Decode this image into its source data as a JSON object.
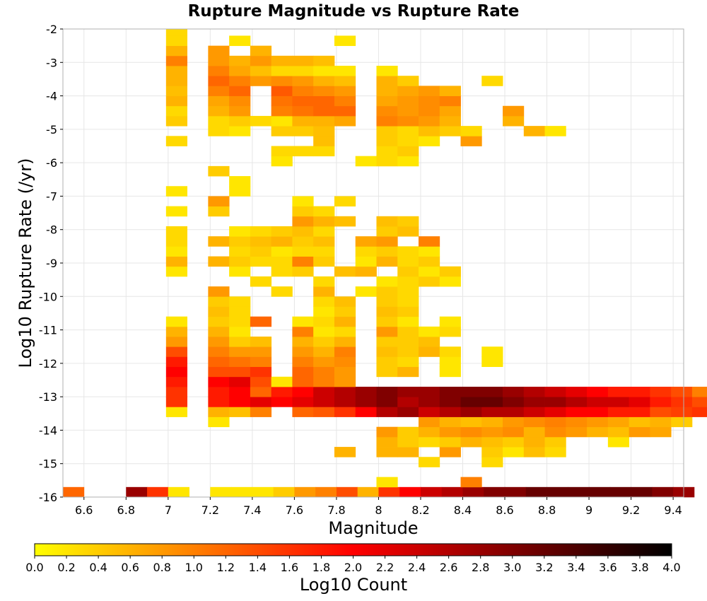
{
  "chart_data": {
    "type": "heatmap",
    "title": "Rupture Magnitude vs Rupture Rate",
    "xlabel": "Magnitude",
    "ylabel": "Log10 Rupture Rate (/yr)",
    "xlim": [
      6.5,
      9.45
    ],
    "ylim": [
      -16,
      -2
    ],
    "grid": true,
    "x_ticks": [
      6.6,
      6.8,
      7,
      7.2,
      7.4,
      7.6,
      7.8,
      8,
      8.2,
      8.4,
      8.6,
      8.8,
      9,
      9.2,
      9.4
    ],
    "x_tick_labels": [
      "6.6",
      "6.8",
      "7",
      "7.2",
      "7.4",
      "7.6",
      "7.8",
      "8",
      "8.2",
      "8.4",
      "8.6",
      "8.8",
      "9",
      "9.2",
      "9.4"
    ],
    "y_ticks": [
      -2,
      -3,
      -4,
      -5,
      -6,
      -7,
      -8,
      -9,
      -10,
      -11,
      -12,
      -13,
      -14,
      -15,
      -16
    ],
    "y_tick_labels": [
      "-2",
      "-3",
      "-4",
      "-5",
      "-6",
      "-7",
      "-8",
      "-9",
      "-10",
      "-11",
      "-12",
      "-13",
      "-14",
      "-15",
      "-16"
    ],
    "bin_width_x": 0.1,
    "bin_height_y": 0.3,
    "colorbar": {
      "label": "Log10 Count",
      "range": [
        0.0,
        4.0
      ],
      "tick_labels": [
        "0.0",
        "0.2",
        "0.4",
        "0.6",
        "0.8",
        "1.0",
        "1.2",
        "1.4",
        "1.6",
        "1.8",
        "2.0",
        "2.2",
        "2.4",
        "2.6",
        "2.8",
        "3.0",
        "3.2",
        "3.4",
        "3.6",
        "3.8",
        "4.0"
      ],
      "colors": [
        "#ffff00",
        "#ff0000",
        "#000000"
      ]
    },
    "rows": [
      {
        "y": -16.0,
        "x_start": 6.5,
        "values": [
          1.2,
          null,
          null,
          2.8,
          1.6,
          0.2,
          null,
          0.2,
          0.2,
          0.2,
          0.4,
          0.8,
          1.0,
          1.4,
          0.6,
          1.6,
          2.0,
          2.4,
          2.6,
          2.8,
          3.0,
          3.0,
          3.2,
          3.2,
          3.2,
          3.2,
          3.2,
          3.2,
          3.0,
          2.8
        ]
      },
      {
        "y": -15.7,
        "x_start": 7.99,
        "values": [
          0.2,
          null,
          null,
          null,
          1.0
        ]
      },
      {
        "y": -15.1,
        "x_start": 8.19,
        "values": [
          0.3,
          null,
          null,
          0.3
        ]
      },
      {
        "y": -14.8,
        "x_start": 7.79,
        "values": [
          0.6,
          null,
          0.6,
          0.6,
          null,
          0.8,
          null,
          0.4,
          0.2,
          0.5,
          0.3
        ]
      },
      {
        "y": -14.5,
        "x_start": 7.99,
        "values": [
          0.6,
          0.4,
          0.3,
          0.4,
          0.6,
          0.5,
          0.4,
          0.6,
          0.4,
          null,
          null,
          0.2
        ]
      },
      {
        "y": -14.2,
        "x_start": 7.99,
        "values": [
          0.8,
          0.4,
          0.6,
          0.8,
          0.9,
          0.8,
          0.9,
          0.6,
          0.9,
          0.8,
          0.6,
          0.5,
          0.8,
          0.7
        ]
      },
      {
        "y": -13.9,
        "x_start": 7.19,
        "values": [
          0.2,
          null,
          null,
          null,
          null,
          null,
          null,
          null,
          null,
          null,
          0.8,
          0.6,
          0.5,
          0.6,
          0.8,
          0.9,
          1.0,
          0.9,
          0.8,
          0.7,
          0.5,
          0.6,
          0.4
        ]
      },
      {
        "y": -13.6,
        "x_start": 6.99,
        "values": [
          0.2,
          null,
          0.6,
          0.5,
          1.0,
          null,
          1.2,
          1.3,
          1.6,
          2.0,
          2.6,
          2.8,
          2.4,
          2.6,
          2.8,
          2.6,
          2.6,
          2.4,
          2.2,
          2.0,
          2.0,
          1.8,
          1.8,
          1.4,
          1.5,
          1.6,
          1.2,
          1.0,
          1.2,
          1.6
        ]
      },
      {
        "y": -13.3,
        "x_start": 6.99,
        "values": [
          1.6,
          null,
          1.8,
          2.0,
          2.2,
          2.0,
          2.2,
          2.4,
          2.6,
          2.8,
          3.0,
          2.6,
          2.8,
          3.0,
          3.2,
          3.2,
          3.0,
          2.8,
          2.8,
          2.6,
          2.4,
          2.4,
          2.2,
          1.8,
          1.6,
          1.4,
          1.2,
          1.0,
          0.8,
          0.6
        ]
      },
      {
        "y": -13.0,
        "x_start": 6.99,
        "values": [
          1.6,
          null,
          1.8,
          2.0,
          1.2,
          1.8,
          2.0,
          2.4,
          2.6,
          2.8,
          3.0,
          2.8,
          2.8,
          3.0,
          3.0,
          3.0,
          2.8,
          2.6,
          2.4,
          2.2,
          2.0,
          1.8,
          1.8,
          1.6,
          1.4,
          1.0,
          0.6,
          0.4,
          0.4
        ]
      },
      {
        "y": -12.7,
        "x_start": 6.99,
        "values": [
          1.8,
          null,
          2.0,
          2.2,
          1.4,
          0.2,
          1.2,
          1.0,
          0.8
        ]
      },
      {
        "y": -12.4,
        "x_start": 6.99,
        "values": [
          2.0,
          null,
          1.4,
          1.4,
          1.6,
          null,
          1.2,
          1.0,
          0.8,
          null,
          0.4,
          0.6,
          null,
          0.2
        ]
      },
      {
        "y": -12.1,
        "x_start": 6.99,
        "values": [
          1.8,
          null,
          1.2,
          1.1,
          1.0,
          null,
          1.0,
          0.8,
          0.9,
          null,
          0.4,
          0.3,
          null,
          0.2,
          null,
          0.2
        ]
      },
      {
        "y": -11.8,
        "x_start": 6.99,
        "values": [
          1.4,
          null,
          1.0,
          0.8,
          0.8,
          null,
          0.8,
          0.6,
          1.0,
          null,
          0.5,
          0.4,
          0.6,
          0.3,
          null,
          0.2
        ]
      },
      {
        "y": -11.5,
        "x_start": 6.99,
        "values": [
          0.8,
          null,
          0.8,
          0.4,
          0.5,
          null,
          0.6,
          0.4,
          0.6,
          null,
          0.4,
          0.4,
          0.5
        ]
      },
      {
        "y": -11.2,
        "x_start": 6.99,
        "values": [
          0.6,
          null,
          0.6,
          0.2,
          null,
          null,
          1.0,
          0.2,
          0.3,
          null,
          0.8,
          0.4,
          0.2,
          0.3
        ]
      },
      {
        "y": -10.9,
        "x_start": 6.99,
        "values": [
          0.2,
          null,
          0.4,
          0.3,
          1.2,
          null,
          0.2,
          0.3,
          0.6,
          null,
          0.4,
          0.2,
          null,
          0.2
        ]
      },
      {
        "y": -10.6,
        "x_start": 7.19,
        "values": [
          0.5,
          0.3,
          null,
          null,
          null,
          0.2,
          0.4,
          null,
          0.5,
          0.4
        ]
      },
      {
        "y": -10.3,
        "x_start": 7.19,
        "values": [
          0.4,
          0.3,
          null,
          null,
          null,
          0.3,
          0.5,
          null,
          0.4,
          0.3
        ]
      },
      {
        "y": -10.0,
        "x_start": 7.19,
        "values": [
          0.8,
          null,
          null,
          0.3,
          null,
          0.6,
          null,
          0.2,
          0.4,
          0.3
        ]
      },
      {
        "y": -9.7,
        "x_start": 7.39,
        "values": [
          0.3,
          null,
          null,
          0.3,
          null,
          null,
          0.2,
          0.3,
          0.4,
          0.2
        ]
      },
      {
        "y": -9.4,
        "x_start": 6.99,
        "values": [
          0.2,
          null,
          null,
          0.2,
          null,
          0.3,
          0.4,
          null,
          0.5,
          0.6,
          null,
          0.4,
          0.2,
          0.4
        ]
      },
      {
        "y": -9.1,
        "x_start": 6.99,
        "values": [
          0.6,
          null,
          0.6,
          0.4,
          0.3,
          0.3,
          1.0,
          0.4,
          null,
          0.2,
          0.6,
          0.3,
          0.4
        ]
      },
      {
        "y": -8.8,
        "x_start": 6.99,
        "values": [
          0.2,
          null,
          null,
          0.3,
          0.4,
          0.2,
          0.3,
          0.3,
          null,
          0.3,
          0.4,
          0.3,
          0.2
        ]
      },
      {
        "y": -8.5,
        "x_start": 6.99,
        "values": [
          0.3,
          null,
          0.6,
          0.4,
          0.5,
          0.6,
          0.4,
          0.5,
          null,
          0.7,
          0.8,
          null,
          1.0
        ]
      },
      {
        "y": -8.2,
        "x_start": 6.99,
        "values": [
          0.3,
          null,
          null,
          0.2,
          0.3,
          0.4,
          0.5,
          0.3,
          null,
          null,
          0.4,
          0.5
        ]
      },
      {
        "y": -7.9,
        "x_start": 7.59,
        "values": [
          0.8,
          0.6,
          0.5,
          null,
          0.5,
          0.4
        ]
      },
      {
        "y": -7.6,
        "x_start": 6.99,
        "values": [
          0.2,
          null,
          0.4,
          null,
          null,
          null,
          0.4,
          0.3
        ]
      },
      {
        "y": -7.3,
        "x_start": 7.19,
        "values": [
          0.8,
          null,
          null,
          null,
          0.2,
          null,
          0.3
        ]
      },
      {
        "y": -7.0,
        "x_start": 6.99,
        "values": [
          0.2,
          null,
          null,
          0.2
        ]
      },
      {
        "y": -6.7,
        "x_start": 7.29,
        "values": [
          0.2
        ]
      },
      {
        "y": -6.4,
        "x_start": 7.19,
        "values": [
          0.4
        ]
      },
      {
        "y": -6.1,
        "x_start": 7.49,
        "values": [
          0.2,
          null,
          null,
          null,
          0.2,
          0.3,
          0.2
        ]
      },
      {
        "y": -5.8,
        "x_start": 7.49,
        "values": [
          0.3,
          0.3,
          0.3,
          null,
          null,
          0.3,
          0.4
        ]
      },
      {
        "y": -5.5,
        "x_start": 6.99,
        "values": [
          0.3,
          null,
          null,
          null,
          null,
          null,
          null,
          0.5,
          null,
          null,
          0.4,
          0.3,
          0.2,
          null,
          0.8
        ]
      },
      {
        "y": -5.2,
        "x_start": 7.19,
        "values": [
          0.3,
          0.2,
          null,
          0.4,
          0.4,
          0.5,
          null,
          null,
          0.4,
          0.3,
          0.5,
          0.4,
          0.3,
          null,
          null,
          0.6,
          0.2
        ]
      },
      {
        "y": -4.9,
        "x_start": 6.99,
        "values": [
          0.4,
          null,
          0.3,
          0.4,
          0.3,
          0.2,
          0.6,
          0.6,
          0.7,
          null,
          1.0,
          0.9,
          0.8,
          0.6,
          null,
          null,
          0.6
        ]
      },
      {
        "y": -4.6,
        "x_start": 6.99,
        "values": [
          0.3,
          null,
          0.6,
          0.8,
          null,
          1.0,
          1.1,
          1.2,
          1.2,
          null,
          0.9,
          0.8,
          0.9,
          0.7,
          null,
          null,
          0.8
        ]
      },
      {
        "y": -4.3,
        "x_start": 6.99,
        "values": [
          0.6,
          null,
          0.7,
          0.9,
          null,
          1.1,
          1.2,
          1.2,
          1.0,
          null,
          0.7,
          0.8,
          0.9,
          1.0
        ]
      },
      {
        "y": -4.0,
        "x_start": 6.99,
        "values": [
          0.5,
          null,
          1.0,
          1.2,
          null,
          1.3,
          1.0,
          0.9,
          0.8,
          null,
          0.6,
          0.7,
          0.8,
          0.6
        ]
      },
      {
        "y": -3.7,
        "x_start": 6.99,
        "values": [
          0.6,
          null,
          1.2,
          1.0,
          0.8,
          0.9,
          0.8,
          0.6,
          0.5,
          null,
          0.6,
          0.4,
          null,
          null,
          null,
          0.3
        ]
      },
      {
        "y": -3.4,
        "x_start": 6.99,
        "values": [
          0.6,
          null,
          1.0,
          0.7,
          0.5,
          0.3,
          0.3,
          0.2,
          0.2,
          null,
          0.2
        ]
      },
      {
        "y": -3.1,
        "x_start": 6.99,
        "values": [
          1.0,
          null,
          0.8,
          0.6,
          0.8,
          0.6,
          0.6,
          0.5
        ]
      },
      {
        "y": -2.8,
        "x_start": 6.99,
        "values": [
          0.6,
          null,
          0.8,
          null,
          0.6
        ]
      },
      {
        "y": -2.5,
        "x_start": 6.99,
        "values": [
          0.3,
          null,
          null,
          0.2,
          null,
          null,
          null,
          null,
          0.2
        ]
      },
      {
        "y": -2.2,
        "x_start": 6.99,
        "values": [
          0.3
        ]
      }
    ]
  }
}
